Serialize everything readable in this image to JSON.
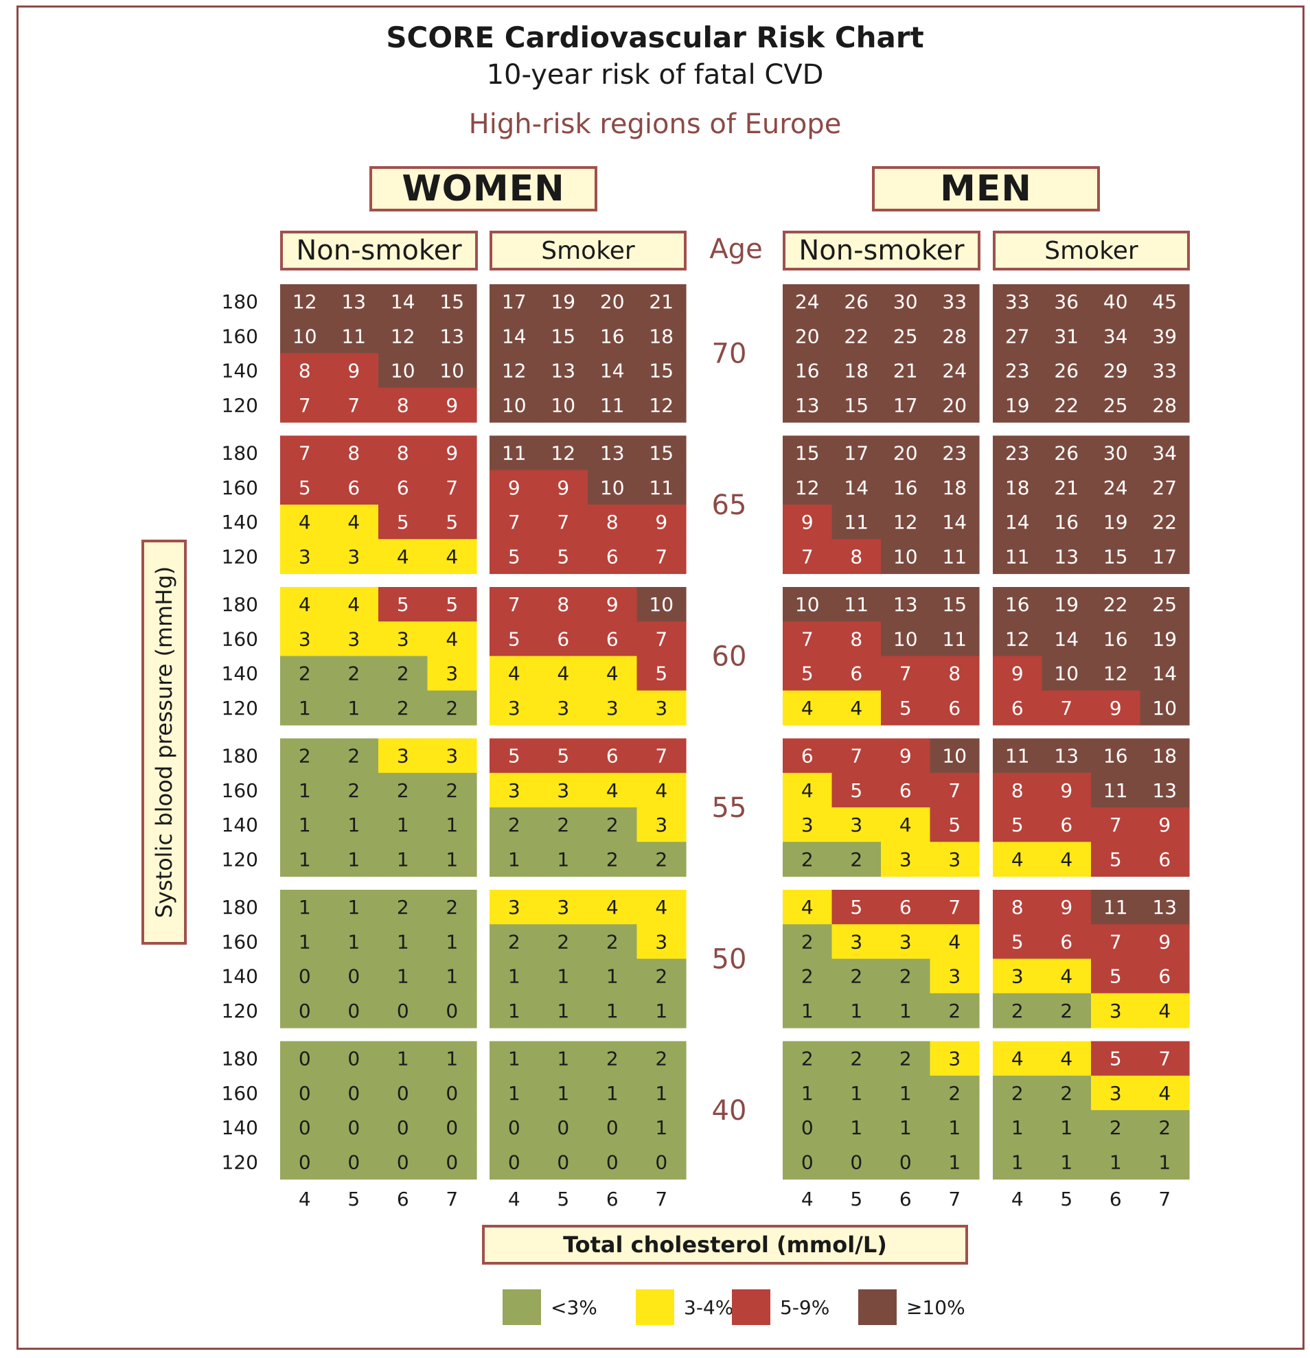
{
  "title": "SCORE Cardiovascular Risk Chart",
  "subtitle": "10-year risk of fatal CVD",
  "region": "High-risk regions of Europe",
  "women_label": "WOMEN",
  "men_label": "MEN",
  "nonsmoker_label": "Non-smoker",
  "smoker_label": "Smoker",
  "age_label": "Age",
  "ylabel": "Systolic blood pressure (mmHg)",
  "xlabel": "Total cholesterol (mmol/L)",
  "colors": {
    "green": "#97a75c",
    "yellow": "#ffe815",
    "red": "#b8413a",
    "brown": "#7b4a3f"
  },
  "legend": [
    {
      "label": "<3%",
      "color": "#97a75c"
    },
    {
      "label": "3-4%",
      "color": "#ffe815"
    },
    {
      "label": "5-9%",
      "color": "#b8413a"
    },
    {
      "label": "≥10%",
      "color": "#7b4a3f"
    }
  ],
  "chart_data": {
    "type": "heatmap",
    "title": "SCORE Cardiovascular Risk Chart",
    "subtitle": "10-year risk of fatal CVD",
    "xlabel": "Total cholesterol (mmol/L)",
    "ylabel": "Systolic blood pressure (mmHg)",
    "x": [
      "4",
      "5",
      "6",
      "7"
    ],
    "y": [
      "180",
      "160",
      "140",
      "120"
    ],
    "ages": [
      "70",
      "65",
      "60",
      "55",
      "50",
      "40"
    ],
    "panels": [
      {
        "sex": "WOMEN",
        "smoking": "Non-smoker",
        "blocks": [
          [
            [
              12,
              13,
              14,
              15
            ],
            [
              10,
              11,
              12,
              13
            ],
            [
              8,
              9,
              10,
              10
            ],
            [
              7,
              7,
              8,
              9
            ]
          ],
          [
            [
              7,
              8,
              8,
              9
            ],
            [
              5,
              6,
              6,
              7
            ],
            [
              4,
              4,
              5,
              5
            ],
            [
              3,
              3,
              4,
              4
            ]
          ],
          [
            [
              4,
              4,
              5,
              5
            ],
            [
              3,
              3,
              3,
              4
            ],
            [
              2,
              2,
              2,
              3
            ],
            [
              1,
              1,
              2,
              2
            ]
          ],
          [
            [
              2,
              2,
              3,
              3
            ],
            [
              1,
              2,
              2,
              2
            ],
            [
              1,
              1,
              1,
              1
            ],
            [
              1,
              1,
              1,
              1
            ]
          ],
          [
            [
              1,
              1,
              2,
              2
            ],
            [
              1,
              1,
              1,
              1
            ],
            [
              0,
              0,
              1,
              1
            ],
            [
              0,
              0,
              0,
              0
            ]
          ],
          [
            [
              0,
              0,
              1,
              1
            ],
            [
              0,
              0,
              0,
              0
            ],
            [
              0,
              0,
              0,
              0
            ],
            [
              0,
              0,
              0,
              0
            ]
          ]
        ]
      },
      {
        "sex": "WOMEN",
        "smoking": "Smoker",
        "blocks": [
          [
            [
              17,
              19,
              20,
              21
            ],
            [
              14,
              15,
              16,
              18
            ],
            [
              12,
              13,
              14,
              15
            ],
            [
              10,
              10,
              11,
              12
            ]
          ],
          [
            [
              11,
              12,
              13,
              15
            ],
            [
              9,
              9,
              10,
              11
            ],
            [
              7,
              7,
              8,
              9
            ],
            [
              5,
              5,
              6,
              7
            ]
          ],
          [
            [
              7,
              8,
              9,
              10
            ],
            [
              5,
              6,
              6,
              7
            ],
            [
              4,
              4,
              4,
              5
            ],
            [
              3,
              3,
              3,
              3
            ]
          ],
          [
            [
              5,
              5,
              6,
              7
            ],
            [
              3,
              3,
              4,
              4
            ],
            [
              2,
              2,
              2,
              3
            ],
            [
              1,
              1,
              2,
              2
            ]
          ],
          [
            [
              3,
              3,
              4,
              4
            ],
            [
              2,
              2,
              2,
              3
            ],
            [
              1,
              1,
              1,
              2
            ],
            [
              1,
              1,
              1,
              1
            ]
          ],
          [
            [
              1,
              1,
              2,
              2
            ],
            [
              1,
              1,
              1,
              1
            ],
            [
              0,
              0,
              0,
              1
            ],
            [
              0,
              0,
              0,
              0
            ]
          ]
        ]
      },
      {
        "sex": "MEN",
        "smoking": "Non-smoker",
        "blocks": [
          [
            [
              24,
              26,
              30,
              33
            ],
            [
              20,
              22,
              25,
              28
            ],
            [
              16,
              18,
              21,
              24
            ],
            [
              13,
              15,
              17,
              20
            ]
          ],
          [
            [
              15,
              17,
              20,
              23
            ],
            [
              12,
              14,
              16,
              18
            ],
            [
              9,
              11,
              12,
              14
            ],
            [
              7,
              8,
              10,
              11
            ]
          ],
          [
            [
              10,
              11,
              13,
              15
            ],
            [
              7,
              8,
              10,
              11
            ],
            [
              5,
              6,
              7,
              8
            ],
            [
              4,
              4,
              5,
              6
            ]
          ],
          [
            [
              6,
              7,
              9,
              10
            ],
            [
              4,
              5,
              6,
              7
            ],
            [
              3,
              3,
              4,
              5
            ],
            [
              2,
              2,
              3,
              3
            ]
          ],
          [
            [
              4,
              5,
              6,
              7
            ],
            [
              2,
              3,
              3,
              4
            ],
            [
              2,
              2,
              2,
              3
            ],
            [
              1,
              1,
              1,
              2
            ]
          ],
          [
            [
              2,
              2,
              2,
              3
            ],
            [
              1,
              1,
              1,
              2
            ],
            [
              0,
              1,
              1,
              1
            ],
            [
              0,
              0,
              0,
              1
            ]
          ]
        ]
      },
      {
        "sex": "MEN",
        "smoking": "Smoker",
        "blocks": [
          [
            [
              33,
              36,
              40,
              45
            ],
            [
              27,
              31,
              34,
              39
            ],
            [
              23,
              26,
              29,
              33
            ],
            [
              19,
              22,
              25,
              28
            ]
          ],
          [
            [
              23,
              26,
              30,
              34
            ],
            [
              18,
              21,
              24,
              27
            ],
            [
              14,
              16,
              19,
              22
            ],
            [
              11,
              13,
              15,
              17
            ]
          ],
          [
            [
              16,
              19,
              22,
              25
            ],
            [
              12,
              14,
              16,
              19
            ],
            [
              9,
              10,
              12,
              14
            ],
            [
              6,
              7,
              9,
              10
            ]
          ],
          [
            [
              11,
              13,
              16,
              18
            ],
            [
              8,
              9,
              11,
              13
            ],
            [
              5,
              6,
              7,
              9
            ],
            [
              4,
              4,
              5,
              6
            ]
          ],
          [
            [
              8,
              9,
              11,
              13
            ],
            [
              5,
              6,
              7,
              9
            ],
            [
              3,
              4,
              5,
              6
            ],
            [
              2,
              2,
              3,
              4
            ]
          ],
          [
            [
              4,
              4,
              5,
              7
            ],
            [
              2,
              2,
              3,
              4
            ],
            [
              1,
              1,
              2,
              2
            ],
            [
              1,
              1,
              1,
              1
            ]
          ]
        ]
      }
    ]
  }
}
